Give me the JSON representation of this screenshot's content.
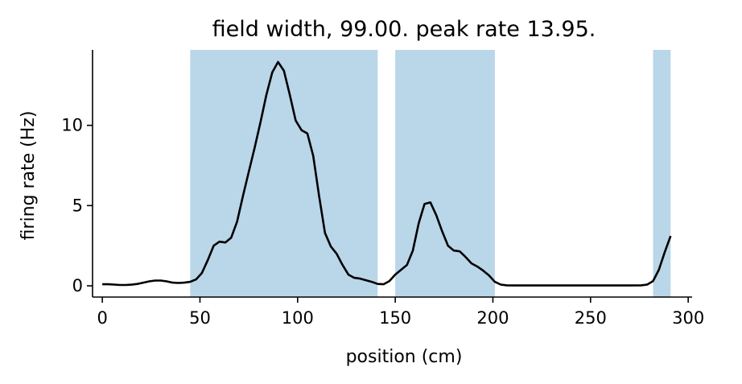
{
  "chart_data": {
    "type": "line",
    "title": "field width, 99.00. peak rate 13.95.",
    "xlabel": "position (cm)",
    "ylabel": "firing rate (Hz)",
    "xlim": [
      -5,
      302
    ],
    "ylim": [
      -0.7,
      14.7
    ],
    "xticks": [
      0,
      50,
      100,
      150,
      200,
      250,
      300
    ],
    "yticks": [
      0,
      5,
      10
    ],
    "grid": false,
    "colors": {
      "line": "#000000",
      "field": "#bad6e9"
    },
    "fields": [
      [
        45,
        141
      ],
      [
        150,
        201
      ],
      [
        282,
        291
      ]
    ],
    "series": [
      {
        "x": [
          0,
          3,
          6,
          9,
          12,
          15,
          18,
          21,
          24,
          27,
          30,
          33,
          36,
          39,
          42,
          45,
          48,
          51,
          54,
          57,
          60,
          63,
          66,
          69,
          72,
          75,
          78,
          81,
          84,
          87,
          90,
          93,
          96,
          99,
          102,
          105,
          108,
          111,
          114,
          117,
          120,
          123,
          126,
          129,
          132,
          135,
          138,
          141,
          144,
          147,
          150,
          153,
          156,
          159,
          162,
          165,
          168,
          171,
          174,
          177,
          180,
          183,
          186,
          189,
          192,
          195,
          198,
          201,
          204,
          207,
          210,
          213,
          225,
          240,
          255,
          270,
          276,
          279,
          282,
          285,
          288,
          291
        ],
        "y": [
          0.1,
          0.1,
          0.08,
          0.05,
          0.05,
          0.07,
          0.12,
          0.2,
          0.28,
          0.33,
          0.33,
          0.28,
          0.2,
          0.18,
          0.2,
          0.25,
          0.4,
          0.8,
          1.6,
          2.5,
          2.75,
          2.7,
          3.0,
          4.0,
          5.6,
          7.1,
          8.6,
          10.2,
          11.9,
          13.3,
          13.95,
          13.4,
          11.9,
          10.3,
          9.7,
          9.5,
          8.1,
          5.6,
          3.3,
          2.45,
          2.0,
          1.3,
          0.7,
          0.5,
          0.45,
          0.35,
          0.25,
          0.12,
          0.1,
          0.3,
          0.7,
          1.0,
          1.3,
          2.2,
          3.9,
          5.1,
          5.2,
          4.4,
          3.4,
          2.5,
          2.2,
          2.15,
          1.8,
          1.4,
          1.2,
          0.95,
          0.65,
          0.25,
          0.08,
          0.03,
          0.02,
          0.02,
          0.02,
          0.02,
          0.02,
          0.02,
          0.03,
          0.08,
          0.3,
          1.0,
          2.1,
          3.1
        ]
      }
    ]
  }
}
